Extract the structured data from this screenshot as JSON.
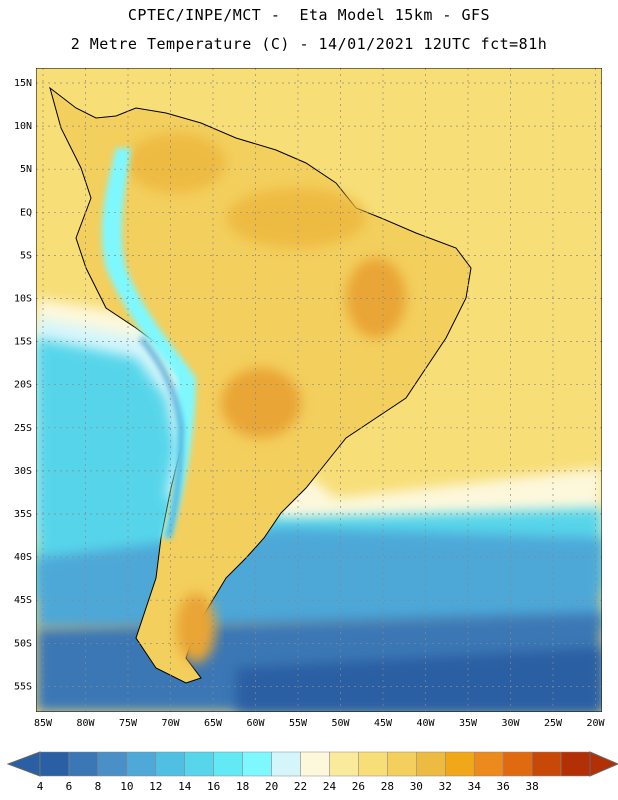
{
  "title_line1": "CPTEC/INPE/MCT -  Eta Model 15km - GFS",
  "title_line2": "2 Metre Temperature (C) - 14/01/2021 12UTC fct=81h",
  "lat_ticks": [
    "15N",
    "10N",
    "5N",
    "EQ",
    "5S",
    "10S",
    "15S",
    "20S",
    "25S",
    "30S",
    "35S",
    "40S",
    "45S",
    "50S",
    "55S"
  ],
  "lon_ticks": [
    "85W",
    "80W",
    "75W",
    "70W",
    "65W",
    "60W",
    "55W",
    "50W",
    "45W",
    "40W",
    "35W",
    "30W",
    "25W",
    "20W"
  ],
  "colorbar": {
    "labels": [
      "4",
      "6",
      "8",
      "10",
      "12",
      "14",
      "16",
      "18",
      "20",
      "22",
      "24",
      "26",
      "28",
      "30",
      "32",
      "34",
      "36",
      "38"
    ],
    "colors": [
      "#2b5fa3",
      "#3b77b5",
      "#4a8fc6",
      "#4ea8d8",
      "#4fc0e2",
      "#57d5ea",
      "#63e9f4",
      "#7ef8ff",
      "#d4f6fb",
      "#fdf8dc",
      "#faeb9c",
      "#f7de77",
      "#f3cf5d",
      "#eebb42",
      "#f0a81a",
      "#ec8a1e",
      "#e06a10",
      "#c84808",
      "#b33006"
    ],
    "low_color": "#2b5fa3",
    "high_color": "#b33006"
  },
  "colors": {
    "ocean_south_deep": "#2b5fa3",
    "ocean_south_mid": "#4ea8d8",
    "ocean_cyan": "#57d5ea",
    "ocean_pale": "#d4f6fb",
    "ocean_cream": "#fdf8dc",
    "ocean_tropical": "#f7de77",
    "land_warm": "#f3cf5d",
    "land_hot": "#eebb42",
    "land_hotter": "#e9a534",
    "andes_cold": "#7ef8ff",
    "andes_colder": "#4ea8d8"
  }
}
